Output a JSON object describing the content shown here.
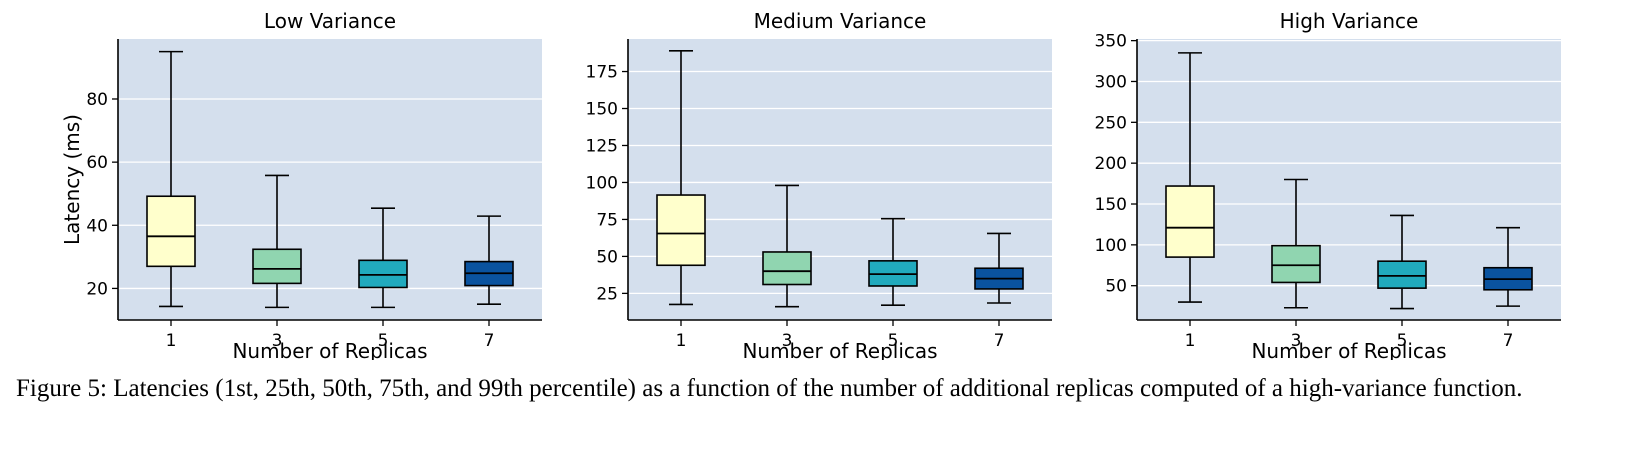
{
  "caption": {
    "label": "Figure 5:",
    "text": "Latencies (1st, 25th, 50th, 75th, and 99th percentile) as a function of the number of additional replicas computed of a high-variance function."
  },
  "colors": {
    "plot_background": "#d4dfed",
    "grid": "#ffffff",
    "box_fills": [
      "#ffffcc",
      "#90d5b0",
      "#21aabd",
      "#0a539f"
    ],
    "lines": "#000000"
  },
  "chart_data": [
    {
      "type": "box",
      "title": "Low Variance",
      "xlabel": "Number of Replicas",
      "ylabel": "Latency (ms)",
      "categories": [
        "1",
        "3",
        "5",
        "7"
      ],
      "yticks": [
        20,
        40,
        60,
        80
      ],
      "ylim": [
        10,
        99
      ],
      "grid": "horizontal",
      "boxes": [
        {
          "min": 14.3,
          "q1": 27.0,
          "median": 36.5,
          "q3": 49.2,
          "max": 95.0
        },
        {
          "min": 14.0,
          "q1": 21.6,
          "median": 26.2,
          "q3": 32.4,
          "max": 55.8
        },
        {
          "min": 14.0,
          "q1": 20.3,
          "median": 24.3,
          "q3": 28.9,
          "max": 45.4
        },
        {
          "min": 15.0,
          "q1": 20.9,
          "median": 24.8,
          "q3": 28.5,
          "max": 42.9
        }
      ]
    },
    {
      "type": "box",
      "title": "Medium Variance",
      "xlabel": "Number of Replicas",
      "ylabel": "",
      "categories": [
        "1",
        "3",
        "5",
        "7"
      ],
      "yticks": [
        25,
        50,
        75,
        100,
        125,
        150,
        175
      ],
      "ylim": [
        7,
        197
      ],
      "grid": "horizontal",
      "boxes": [
        {
          "min": 17.5,
          "q1": 44.0,
          "median": 65.5,
          "q3": 91.5,
          "max": 189.0
        },
        {
          "min": 16.0,
          "q1": 31.0,
          "median": 40.0,
          "q3": 53.0,
          "max": 98.0
        },
        {
          "min": 17.0,
          "q1": 30.0,
          "median": 38.0,
          "q3": 47.0,
          "max": 75.5
        },
        {
          "min": 18.5,
          "q1": 28.0,
          "median": 35.0,
          "q3": 42.0,
          "max": 65.5
        }
      ]
    },
    {
      "type": "box",
      "title": "High Variance",
      "xlabel": "Number of Replicas",
      "ylabel": "",
      "categories": [
        "1",
        "3",
        "5",
        "7"
      ],
      "yticks": [
        50,
        100,
        150,
        200,
        250,
        300,
        350
      ],
      "ylim": [
        8,
        352
      ],
      "grid": "horizontal",
      "boxes": [
        {
          "min": 30.0,
          "q1": 85.0,
          "median": 121.0,
          "q3": 172.0,
          "max": 335.0
        },
        {
          "min": 23.0,
          "q1": 54.0,
          "median": 75.0,
          "q3": 99.0,
          "max": 180.0
        },
        {
          "min": 22.0,
          "q1": 47.0,
          "median": 62.0,
          "q3": 80.0,
          "max": 136.0
        },
        {
          "min": 25.0,
          "q1": 45.0,
          "median": 58.0,
          "q3": 72.0,
          "max": 121.0
        }
      ]
    }
  ]
}
